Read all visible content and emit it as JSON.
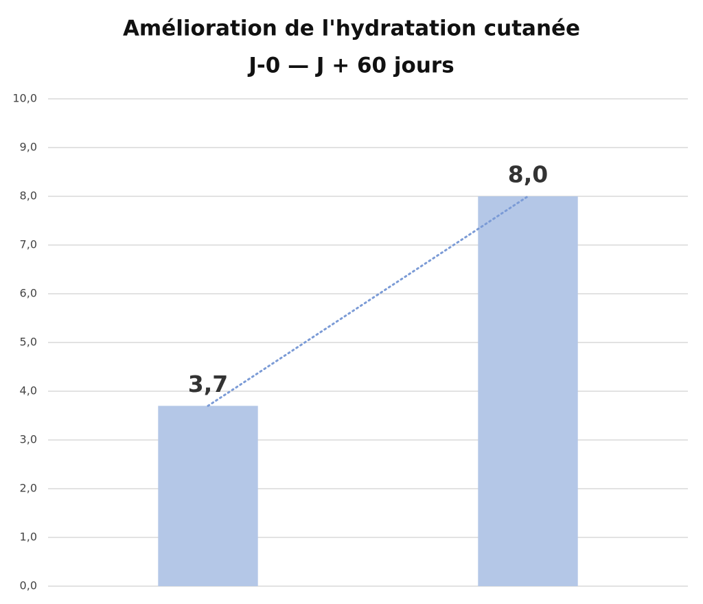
{
  "chart_data": {
    "type": "bar",
    "title": "Amélioration de l'hydratation cutanée",
    "subtitle": "J-0 — J + 60 jours",
    "categories": [
      null,
      null
    ],
    "values": [
      3.7,
      8.0
    ],
    "value_labels": [
      "3,7",
      "8,0"
    ],
    "color": "#b4c7e7",
    "ylim": [
      0,
      10
    ],
    "yticks": [
      {
        "value": 0,
        "label": "0,0"
      },
      {
        "value": 1,
        "label": "1,0"
      },
      {
        "value": 2,
        "label": "2,0"
      },
      {
        "value": 3,
        "label": "3,0"
      },
      {
        "value": 4,
        "label": "4,0"
      },
      {
        "value": 5,
        "label": "5,0"
      },
      {
        "value": 6,
        "label": "6,0"
      },
      {
        "value": 7,
        "label": "7,0"
      },
      {
        "value": 8,
        "label": "8,0"
      },
      {
        "value": 9,
        "label": "9,0"
      },
      {
        "value": 10,
        "label": "10,0"
      }
    ],
    "grid": true,
    "trendline": true,
    "trendline_color": "#7b9bd6"
  }
}
